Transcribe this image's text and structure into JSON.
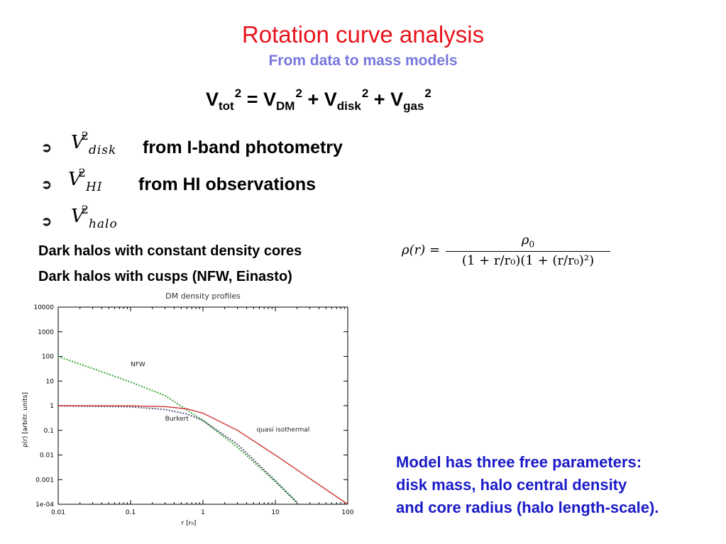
{
  "slide": {
    "title": "Rotation curve analysis",
    "subtitle": "From data to mass models",
    "equation": {
      "lhs": "V",
      "lhs_sub": "tot",
      "lhs_sup": "2",
      "eq": "=",
      "t1": "V",
      "t1_sub": "DM",
      "t1_sup": "2",
      "plus1": "+",
      "t2": "V",
      "t2_sub": "disk",
      "t2_sup": "2",
      "plus2": "+",
      "t3": "V",
      "t3_sub": "gas",
      "t3_sup": "2"
    },
    "bullets": [
      {
        "marker": "➲",
        "sym": "V",
        "sub": "disk",
        "sup": "2",
        "text": "from I-band photometry"
      },
      {
        "marker": "➲",
        "sym": "V",
        "sub": "HI",
        "sup": "2",
        "text": "from HI observations"
      },
      {
        "marker": "➲",
        "sym": "V",
        "sub": "halo",
        "sup": "2",
        "text": ""
      }
    ],
    "lines": [
      "Dark halos with constant density cores",
      "Dark halos with cusps (NFW, Einasto)"
    ],
    "density_equation": {
      "lhs": "ρ(r) =",
      "numerator": "ρ",
      "numerator_sub": "0",
      "denominator": "(1 + r/r₀)(1 + (r/r₀)²)"
    },
    "model_note": [
      "Model has three free parameters:",
      "disk mass, halo central density",
      "and core radius (halo length-scale)."
    ]
  },
  "colors": {
    "title": "#e8141b",
    "subtitle": "#7777dd",
    "note": "#1a1ac8",
    "nfw": "#3aa33a",
    "burkert": "#555577",
    "quasi_isothermal": "#cc3333"
  },
  "chart_data": {
    "type": "line",
    "title": "DM density profiles",
    "xlabel": "r   [r₀]",
    "ylabel": "ρ(r)   [arbitr. units]",
    "xscale": "log",
    "yscale": "log",
    "xlim": [
      0.01,
      100
    ],
    "ylim": [
      0.0001,
      10000
    ],
    "x_ticks": [
      "0.01",
      "0.1",
      "1",
      "10",
      "100"
    ],
    "y_ticks": [
      "1e-04",
      "0.001",
      "0.01",
      "0.1",
      "1",
      "10",
      "100",
      "1000",
      "10000"
    ],
    "annotations": [
      {
        "text": "NFW",
        "series": "NFW",
        "x": 0.1,
        "y": 40
      },
      {
        "text": "Burkert",
        "series": "Burkert",
        "x": 0.3,
        "y": 0.25
      },
      {
        "text": "quasi isothermal",
        "series": "quasi isothermal",
        "x": 5.5,
        "y": 0.09
      }
    ],
    "series": [
      {
        "name": "NFW",
        "style": "dotted",
        "color": "#3aa33a",
        "x": [
          0.01,
          0.03,
          0.1,
          0.3,
          1,
          3,
          10,
          20
        ],
        "y": [
          99,
          32.3,
          9.1,
          2.56,
          0.25,
          0.0206,
          0.00083,
          0.000113
        ]
      },
      {
        "name": "Burkert",
        "style": "dotted",
        "color": "#555577",
        "x": [
          0.01,
          0.1,
          0.3,
          0.6,
          1,
          3,
          10,
          20
        ],
        "y": [
          0.99,
          0.9,
          0.7,
          0.46,
          0.25,
          0.0271,
          0.000909,
          0.000118
        ]
      },
      {
        "name": "quasi isothermal",
        "style": "solid",
        "color": "#cc3333",
        "x": [
          0.01,
          0.1,
          0.3,
          0.6,
          1,
          3,
          10,
          30,
          100
        ],
        "y": [
          1.0,
          0.99,
          0.92,
          0.74,
          0.5,
          0.1,
          0.0099,
          0.0011,
          0.0001
        ]
      }
    ]
  }
}
